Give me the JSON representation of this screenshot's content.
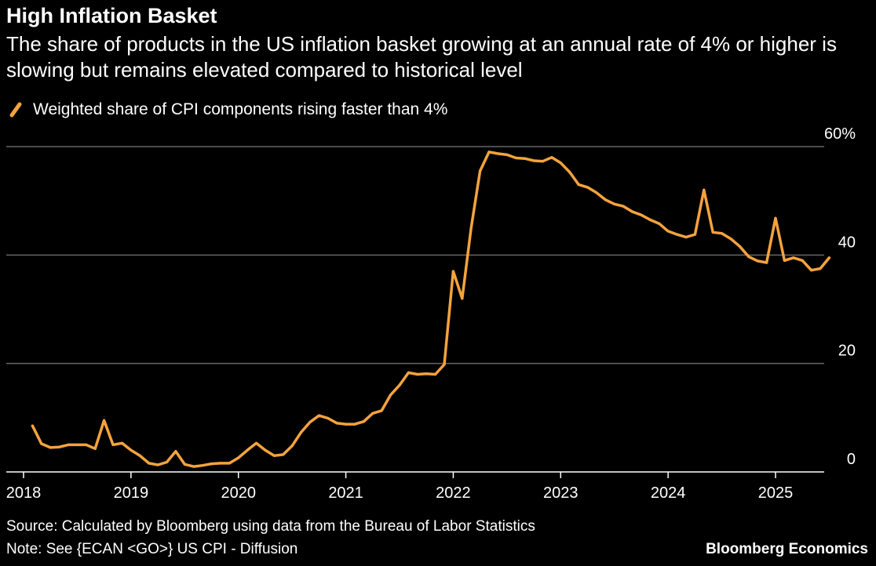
{
  "title": "High Inflation Basket",
  "subtitle": "The share of products in the US inflation basket growing at an annual rate of 4% or higher is slowing but remains elevated compared to historical level",
  "legend_icon": "orange-slash-icon",
  "footer": {
    "source": "Source: Calculated by Bloomberg using data from the Bureau of Labor Statistics",
    "note": "Note: See {ECAN <GO>} US CPI - Diffusion",
    "brand": "Bloomberg Economics"
  },
  "colors": {
    "background": "#000000",
    "line": "#F5A33D",
    "grid": "#666666",
    "text": "#FFFFFF"
  },
  "chart_data": {
    "type": "line",
    "title": "High Inflation Basket",
    "subtitle": "The share of products in the US inflation basket growing at an annual rate of 4% or higher is slowing but remains elevated compared to historical level",
    "xlabel": "",
    "ylabel": "",
    "ylim": [
      0,
      60
    ],
    "xlim": [
      "2018-01",
      "2025-12"
    ],
    "y_ticks": [
      0,
      20,
      40,
      60
    ],
    "y_tick_labels": [
      "0",
      "20",
      "40",
      "60%"
    ],
    "x_ticks": [
      "2018",
      "2019",
      "2020",
      "2021",
      "2022",
      "2023",
      "2024",
      "2025"
    ],
    "grid": "horizontal",
    "legend_position": "top-left",
    "series": [
      {
        "name": "Weighted share of CPI components rising faster than 4%",
        "color": "#F5A33D",
        "points": [
          [
            "2018-02",
            8.5
          ],
          [
            "2018-03",
            5.2
          ],
          [
            "2018-04",
            4.5
          ],
          [
            "2018-05",
            4.6
          ],
          [
            "2018-06",
            5.0
          ],
          [
            "2018-07",
            5.0
          ],
          [
            "2018-08",
            5.0
          ],
          [
            "2018-09",
            4.3
          ],
          [
            "2018-10",
            9.5
          ],
          [
            "2018-11",
            5.0
          ],
          [
            "2018-12",
            5.3
          ],
          [
            "2019-01",
            4.0
          ],
          [
            "2019-02",
            3.0
          ],
          [
            "2019-03",
            1.6
          ],
          [
            "2019-04",
            1.3
          ],
          [
            "2019-05",
            1.8
          ],
          [
            "2019-06",
            3.8
          ],
          [
            "2019-07",
            1.4
          ],
          [
            "2019-08",
            1.0
          ],
          [
            "2019-09",
            1.2
          ],
          [
            "2019-10",
            1.5
          ],
          [
            "2019-11",
            1.6
          ],
          [
            "2019-12",
            1.6
          ],
          [
            "2020-01",
            2.6
          ],
          [
            "2020-02",
            4.0
          ],
          [
            "2020-03",
            5.3
          ],
          [
            "2020-04",
            4.0
          ],
          [
            "2020-05",
            3.0
          ],
          [
            "2020-06",
            3.2
          ],
          [
            "2020-07",
            4.8
          ],
          [
            "2020-08",
            7.3
          ],
          [
            "2020-09",
            9.2
          ],
          [
            "2020-10",
            10.4
          ],
          [
            "2020-11",
            9.9
          ],
          [
            "2020-12",
            9.0
          ],
          [
            "2021-01",
            8.8
          ],
          [
            "2021-02",
            8.8
          ],
          [
            "2021-03",
            9.3
          ],
          [
            "2021-04",
            10.8
          ],
          [
            "2021-05",
            11.3
          ],
          [
            "2021-06",
            14.2
          ],
          [
            "2021-07",
            16.0
          ],
          [
            "2021-08",
            18.3
          ],
          [
            "2021-09",
            18.0
          ],
          [
            "2021-10",
            18.1
          ],
          [
            "2021-11",
            18.0
          ],
          [
            "2021-12",
            19.8
          ],
          [
            "2022-01",
            37.0
          ],
          [
            "2022-02",
            32.0
          ],
          [
            "2022-03",
            45.0
          ],
          [
            "2022-04",
            55.5
          ],
          [
            "2022-05",
            59.0
          ],
          [
            "2022-06",
            58.7
          ],
          [
            "2022-07",
            58.5
          ],
          [
            "2022-08",
            57.9
          ],
          [
            "2022-09",
            57.8
          ],
          [
            "2022-10",
            57.4
          ],
          [
            "2022-11",
            57.3
          ],
          [
            "2022-12",
            58.0
          ],
          [
            "2023-01",
            57.0
          ],
          [
            "2023-02",
            55.3
          ],
          [
            "2023-03",
            53.0
          ],
          [
            "2023-04",
            52.5
          ],
          [
            "2023-05",
            51.5
          ],
          [
            "2023-06",
            50.2
          ],
          [
            "2023-07",
            49.4
          ],
          [
            "2023-08",
            49.0
          ],
          [
            "2023-09",
            48.0
          ],
          [
            "2023-10",
            47.4
          ],
          [
            "2023-11",
            46.5
          ],
          [
            "2023-12",
            45.8
          ],
          [
            "2024-01",
            44.4
          ],
          [
            "2024-02",
            43.8
          ],
          [
            "2024-03",
            43.3
          ],
          [
            "2024-04",
            43.8
          ],
          [
            "2024-05",
            52.0
          ],
          [
            "2024-06",
            44.2
          ],
          [
            "2024-07",
            44.0
          ],
          [
            "2024-08",
            43.0
          ],
          [
            "2024-09",
            41.6
          ],
          [
            "2024-10",
            39.7
          ],
          [
            "2024-11",
            38.9
          ],
          [
            "2024-12",
            38.6
          ],
          [
            "2025-01",
            46.8
          ],
          [
            "2025-02",
            39.0
          ],
          [
            "2025-03",
            39.5
          ],
          [
            "2025-04",
            39.0
          ],
          [
            "2025-05",
            37.2
          ],
          [
            "2025-06",
            37.5
          ],
          [
            "2025-07",
            39.5
          ]
        ]
      }
    ]
  }
}
